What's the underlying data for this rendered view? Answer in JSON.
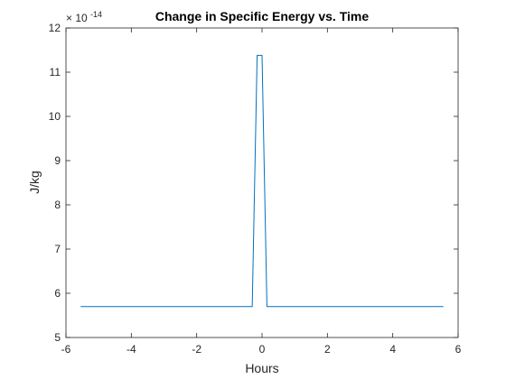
{
  "chart_data": {
    "type": "line",
    "title": "Change in Specific Energy vs. Time",
    "xlabel": "Hours",
    "ylabel": "J/kg",
    "xlim": [
      -6,
      6
    ],
    "ylim": [
      5,
      12
    ],
    "xticks": [
      -6,
      -4,
      -2,
      0,
      2,
      4,
      6
    ],
    "yticks": [
      5,
      6,
      7,
      8,
      9,
      10,
      11,
      12
    ],
    "xtick_labels": [
      "-6",
      "-4",
      "-2",
      "0",
      "2",
      "4",
      "6"
    ],
    "ytick_labels": [
      "5",
      "6",
      "7",
      "8",
      "9",
      "10",
      "11",
      "12"
    ],
    "y_exponent_base": "× 10",
    "y_exponent_power": "-14",
    "grid": false,
    "series": [
      {
        "x": [
          -5.55,
          -0.3,
          -0.15,
          0.0,
          0.15,
          5.55
        ],
        "y": [
          5.7,
          5.7,
          11.38,
          11.38,
          5.7,
          5.7
        ]
      }
    ],
    "colors": {
      "line": "#0072BD",
      "axis": "#262626"
    }
  }
}
